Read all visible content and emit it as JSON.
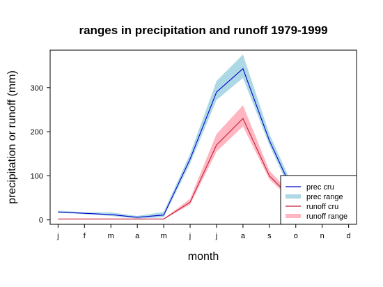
{
  "chart_data": {
    "type": "line",
    "title": "ranges in precipitation and runoff 1979-1999",
    "xlabel": "month",
    "ylabel": "precipitation or runoff (mm)",
    "categories": [
      "j",
      "f",
      "m",
      "a",
      "m",
      "j",
      "j",
      "a",
      "s",
      "o",
      "n",
      "d"
    ],
    "yticks": [
      0,
      100,
      200,
      300
    ],
    "xlim": [
      0.7,
      12.3
    ],
    "ylim": [
      -10,
      385
    ],
    "legend_position": "bottom-right",
    "series": [
      {
        "name": "prec cru",
        "kind": "line",
        "color": "#0000cd",
        "values": [
          18,
          15,
          12,
          6,
          11,
          138,
          290,
          343,
          180,
          50,
          30,
          20
        ]
      },
      {
        "name": "prec range",
        "kind": "band",
        "color": "#add8e6",
        "lower": [
          16,
          13,
          9,
          3,
          6,
          128,
          272,
          322,
          170,
          40,
          25,
          16
        ],
        "upper": [
          21,
          17,
          17,
          9,
          18,
          150,
          315,
          375,
          195,
          62,
          38,
          25
        ]
      },
      {
        "name": "runoff cru",
        "kind": "line",
        "color": "#c41e3a",
        "values": [
          2,
          2,
          2,
          2,
          2,
          40,
          170,
          230,
          100,
          40,
          20,
          10
        ]
      },
      {
        "name": "runoff range",
        "kind": "band",
        "color": "#ffb6c1",
        "lower": [
          1,
          1,
          1,
          1,
          1,
          35,
          155,
          212,
          92,
          35,
          17,
          8
        ],
        "upper": [
          3,
          3,
          3,
          3,
          3,
          48,
          195,
          260,
          112,
          48,
          25,
          13
        ]
      }
    ]
  }
}
